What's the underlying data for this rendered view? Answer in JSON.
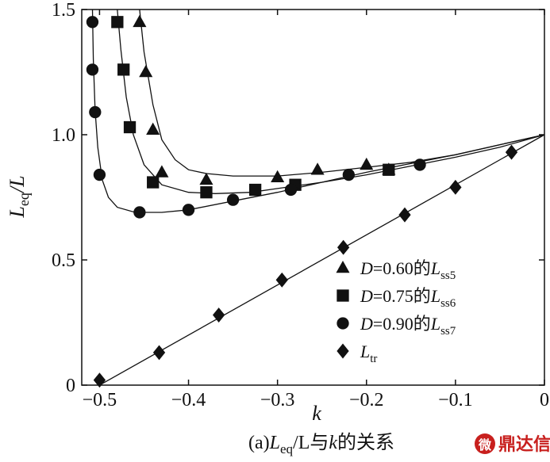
{
  "chart_data": {
    "type": "line",
    "xlabel": "k",
    "ylabel": "Leq/L",
    "ylabel_main": "L",
    "ylabel_sub": "eq",
    "ylabel_tail": "/L",
    "xlim": [
      -0.52,
      0
    ],
    "ylim": [
      0,
      1.5
    ],
    "xticks": [
      -0.5,
      -0.4,
      -0.3,
      -0.2,
      -0.1,
      0
    ],
    "xtick_labels": [
      "−0.5",
      "−0.4",
      "−0.3",
      "−0.2",
      "−0.1",
      "0"
    ],
    "yticks": [
      0,
      0.5,
      1.0,
      1.5
    ],
    "ytick_labels": [
      "0",
      "0.5",
      "1.0",
      "1.5"
    ],
    "grid": false,
    "legend_position": "bottom-right",
    "caption": {
      "prefix": "(a)",
      "main": "L",
      "sub": "eq",
      "rest1": "/L与",
      "k": "k",
      "rest2": "的关系"
    },
    "series": [
      {
        "name": "D=0.60的Lss5",
        "legend": {
          "italic1": "D",
          "text": "=0.60的",
          "italic2": "L",
          "sub": "ss5"
        },
        "marker": "triangle",
        "x": [
          -0.455,
          -0.448,
          -0.44,
          -0.43,
          -0.38,
          -0.3,
          -0.255,
          -0.2,
          -0.175
        ],
        "y": [
          1.45,
          1.25,
          1.02,
          0.85,
          0.82,
          0.83,
          0.86,
          0.88,
          0.86
        ],
        "line_x": [
          -0.455,
          -0.45,
          -0.44,
          -0.43,
          -0.415,
          -0.4,
          -0.38,
          -0.35,
          -0.3,
          -0.25,
          -0.2,
          -0.15,
          -0.1,
          -0.05,
          0
        ],
        "line_y": [
          1.5,
          1.33,
          1.12,
          0.98,
          0.9,
          0.86,
          0.845,
          0.835,
          0.835,
          0.85,
          0.87,
          0.89,
          0.92,
          0.96,
          1.0
        ]
      },
      {
        "name": "D=0.75的Lss6",
        "legend": {
          "italic1": "D",
          "text": "=0.75的",
          "italic2": "L",
          "sub": "ss6"
        },
        "marker": "square",
        "x": [
          -0.48,
          -0.473,
          -0.466,
          -0.44,
          -0.38,
          -0.325,
          -0.28,
          -0.175
        ],
        "y": [
          1.45,
          1.26,
          1.03,
          0.81,
          0.77,
          0.78,
          0.8,
          0.86
        ],
        "line_x": [
          -0.48,
          -0.476,
          -0.47,
          -0.462,
          -0.45,
          -0.43,
          -0.4,
          -0.37,
          -0.33,
          -0.3,
          -0.25,
          -0.2,
          -0.15,
          -0.1,
          -0.05,
          0
        ],
        "line_y": [
          1.5,
          1.34,
          1.15,
          1.0,
          0.88,
          0.8,
          0.77,
          0.765,
          0.77,
          0.785,
          0.81,
          0.84,
          0.875,
          0.91,
          0.95,
          1.0
        ]
      },
      {
        "name": "D=0.90的Lss7",
        "legend": {
          "italic1": "D",
          "text": "=0.90的",
          "italic2": "L",
          "sub": "ss7"
        },
        "marker": "circle",
        "x": [
          -0.508,
          -0.508,
          -0.505,
          -0.5,
          -0.455,
          -0.4,
          -0.35,
          -0.285,
          -0.22,
          -0.14
        ],
        "y": [
          1.45,
          1.26,
          1.09,
          0.84,
          0.69,
          0.7,
          0.74,
          0.78,
          0.84,
          0.88
        ],
        "line_x": [
          -0.508,
          -0.507,
          -0.505,
          -0.502,
          -0.497,
          -0.49,
          -0.48,
          -0.46,
          -0.43,
          -0.4,
          -0.35,
          -0.3,
          -0.25,
          -0.2,
          -0.15,
          -0.1,
          -0.05,
          0
        ],
        "line_y": [
          1.5,
          1.3,
          1.1,
          0.95,
          0.82,
          0.75,
          0.71,
          0.69,
          0.69,
          0.7,
          0.735,
          0.77,
          0.81,
          0.85,
          0.885,
          0.92,
          0.96,
          1.0
        ]
      },
      {
        "name": "Ltr",
        "legend": {
          "italic1": "",
          "text": "",
          "italic2": "L",
          "sub": "tr"
        },
        "marker": "diamond",
        "x": [
          -0.5,
          -0.433,
          -0.366,
          -0.295,
          -0.226,
          -0.157,
          -0.1,
          -0.037
        ],
        "y": [
          0.02,
          0.13,
          0.28,
          0.42,
          0.55,
          0.68,
          0.79,
          0.93
        ],
        "line_x": [
          -0.5,
          0
        ],
        "line_y": [
          0.0,
          1.0
        ]
      }
    ]
  },
  "watermark": {
    "logo_text": "微",
    "label": "鼎达信"
  }
}
